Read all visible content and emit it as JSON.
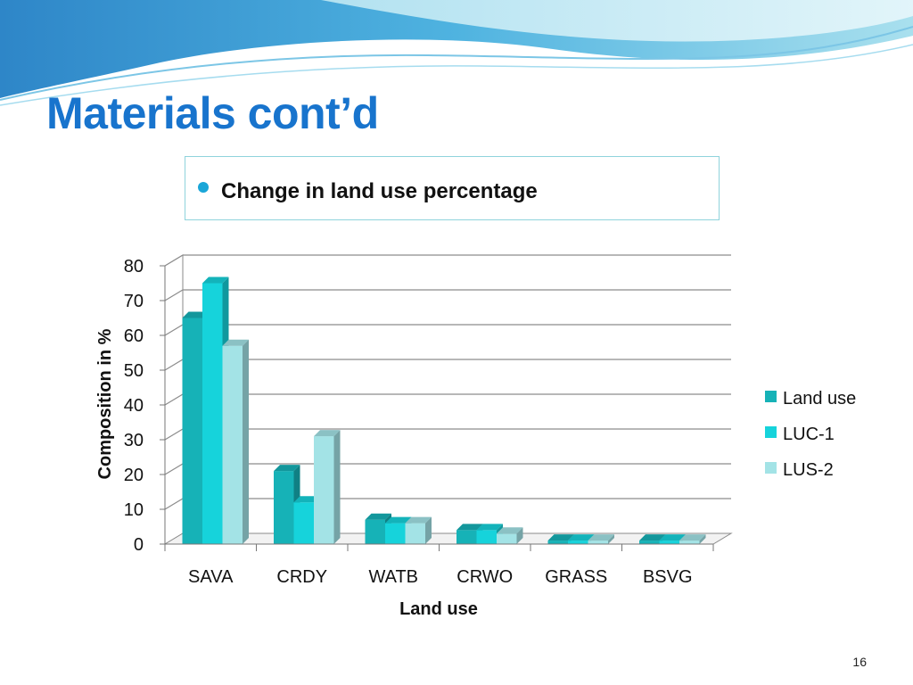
{
  "slide": {
    "title": "Materials cont’d",
    "bullet_text": "Change in land use percentage",
    "page_number": "16"
  },
  "colors": {
    "title": "#1874cd",
    "wave_dark": "#3b9fd8",
    "wave_light": "#b9e6f0",
    "box_border": "#8fd3dc",
    "bullet": "#1aa6d8"
  },
  "chart_data": {
    "type": "bar",
    "style": "3d-clustered-column",
    "categories": [
      "SAVA",
      "CRDY",
      "WATB",
      "CRWO",
      "GRASS",
      "BSVG"
    ],
    "series": [
      {
        "name": "Land use",
        "color": "#16b2b7",
        "values": [
          65,
          21,
          7,
          4,
          1,
          1
        ]
      },
      {
        "name": "LUC-1",
        "color": "#16d3db",
        "values": [
          75,
          12,
          6,
          4,
          1,
          1
        ]
      },
      {
        "name": "LUS-2",
        "color": "#a3e3e6",
        "values": [
          57,
          31,
          6,
          3,
          1,
          1
        ]
      }
    ],
    "y_ticks": [
      "0",
      "10",
      "20",
      "30",
      "40",
      "50",
      "60",
      "70",
      "80"
    ],
    "ylim": [
      0,
      80
    ],
    "xlabel": "Land use",
    "ylabel": "Composition in %",
    "grid": true,
    "legend_position": "right"
  }
}
